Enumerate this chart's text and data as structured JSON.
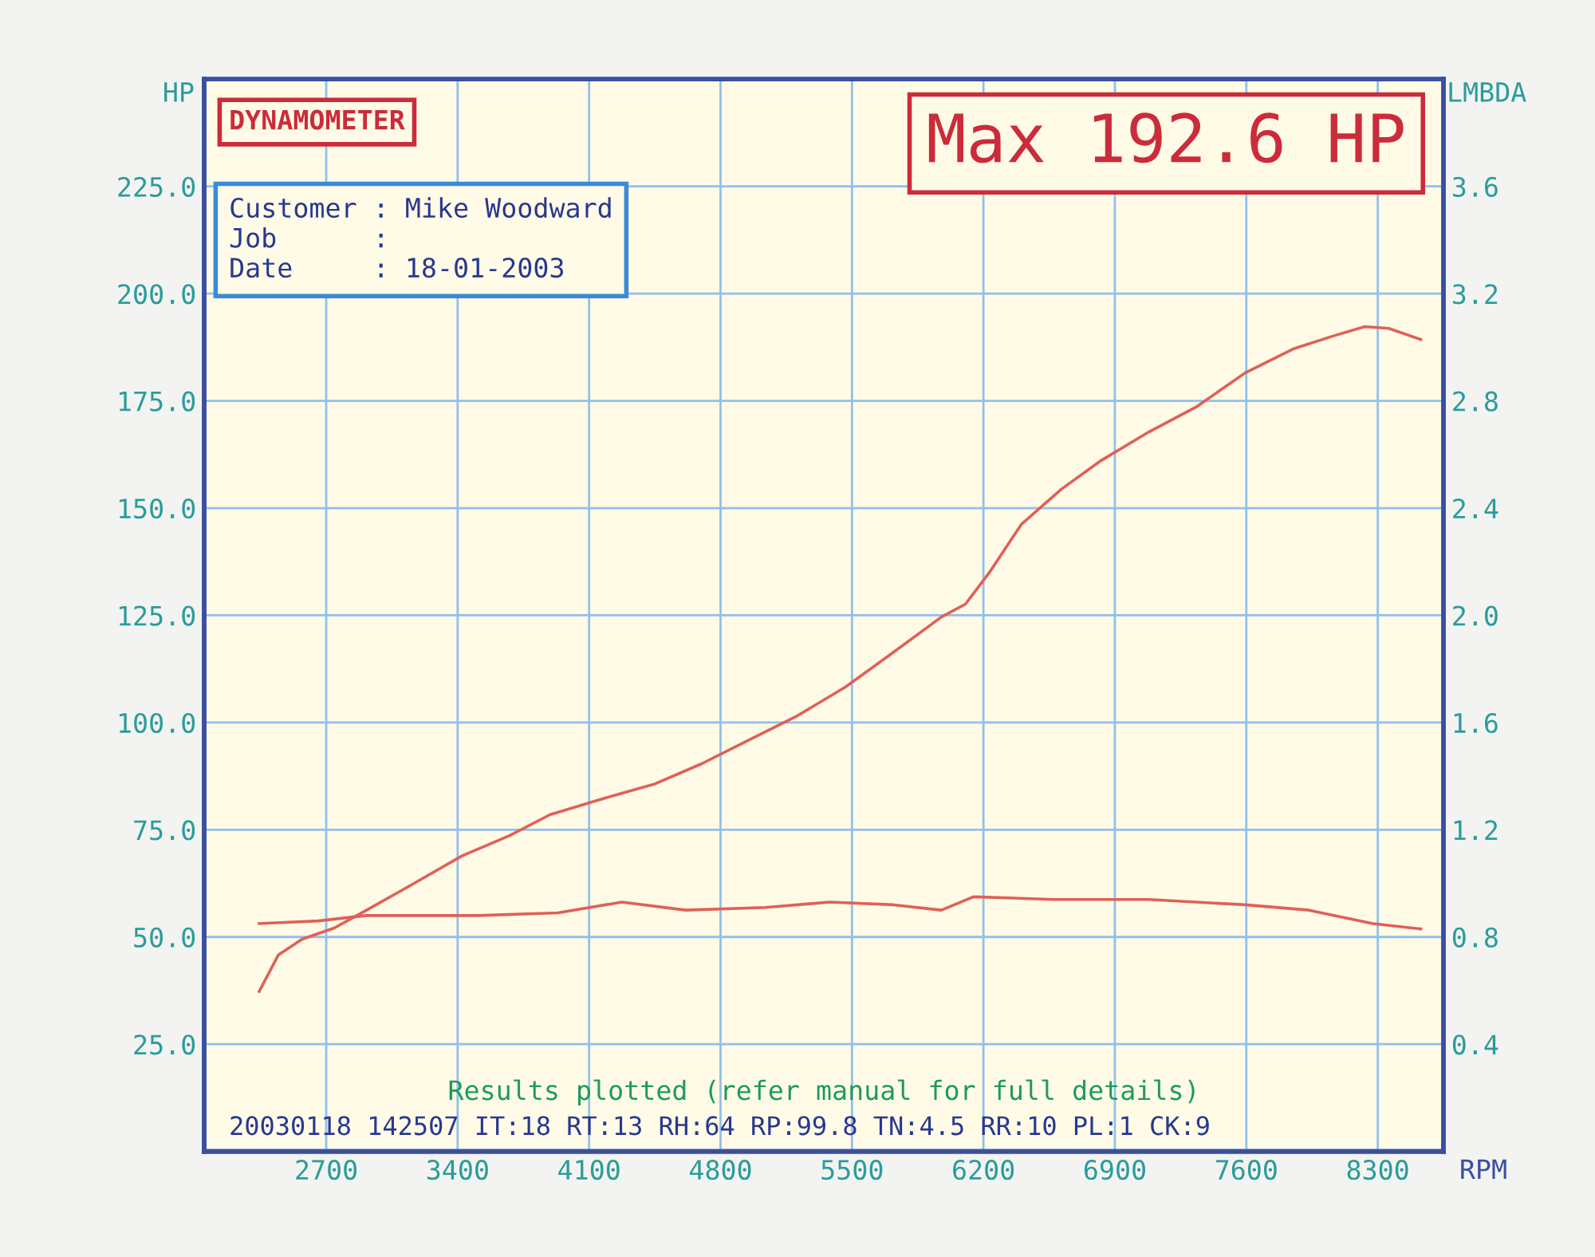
{
  "chart_data": {
    "type": "line",
    "title": "DYNAMOMETER",
    "xlabel": "RPM",
    "ylabel": "HP",
    "y2label": "LMBDA",
    "annotations": [
      "Max 192.6 HP",
      "Customer : Mike Woodward\nJob      :\nDate     : 18-01-2003",
      "Results plotted (refer manual for full details)",
      "20030118 142507 IT:18 RT:13 RH:64 RP:99.8 TN:4.5 RR:10 PL:1 CK:9"
    ],
    "series": [
      {
        "color": "#e0605a",
        "x": [
          2343,
          2445,
          2572,
          2743,
          2913,
          3168,
          3423,
          3679,
          3891,
          4147,
          4445,
          4700,
          4955,
          5210,
          5466,
          5721,
          5976,
          6104,
          6232,
          6402,
          6615,
          6827,
          7083,
          7338,
          7593,
          7849,
          8061,
          8231,
          8359,
          8529
        ],
        "values": [
          37.3,
          45.8,
          49.5,
          52.1,
          56.2,
          62.5,
          68.9,
          73.7,
          78.5,
          81.9,
          85.6,
          90.4,
          96.0,
          101.6,
          108.3,
          116.4,
          124.6,
          127.6,
          135.0,
          146.2,
          154.4,
          161.1,
          167.8,
          173.7,
          181.5,
          187.1,
          190.1,
          192.3,
          191.9,
          189.3
        ]
      },
      {
        "color": "#e0605a",
        "axis": "y2",
        "x": [
          2343,
          2657,
          2913,
          3509,
          3934,
          4274,
          4615,
          5040,
          5381,
          5721,
          5976,
          6147,
          6572,
          7083,
          7593,
          7934,
          8274,
          8529
        ],
        "values": [
          0.85,
          0.86,
          0.88,
          0.88,
          0.89,
          0.93,
          0.9,
          0.91,
          0.93,
          0.92,
          0.9,
          0.95,
          0.94,
          0.94,
          0.92,
          0.9,
          0.85,
          0.83
        ]
      }
    ],
    "xlim": [
      2050,
      8650
    ],
    "xticks": [
      2700,
      3400,
      4100,
      4800,
      5500,
      6200,
      6900,
      7600,
      8300
    ],
    "ylim": [
      0,
      250
    ],
    "yticks": [
      {
        "value": 25,
        "label": "25.0"
      },
      {
        "value": 50,
        "label": "50.0"
      },
      {
        "value": 75,
        "label": "75.0"
      },
      {
        "value": 100,
        "label": "100.0"
      },
      {
        "value": 125,
        "label": "125.0"
      },
      {
        "value": 150,
        "label": "150.0"
      },
      {
        "value": 175,
        "label": "175.0"
      },
      {
        "value": 200,
        "label": "200.0"
      },
      {
        "value": 225,
        "label": "225.0"
      }
    ],
    "y2lim": [
      0,
      4.0
    ],
    "y2ticks": [
      0.4,
      0.8,
      1.2,
      1.6,
      {
        "value": 2.0,
        "label": "2.0"
      },
      2.4,
      2.8,
      3.2,
      3.6
    ],
    "grid": true,
    "line_style": "solid",
    "marker": "none"
  }
}
